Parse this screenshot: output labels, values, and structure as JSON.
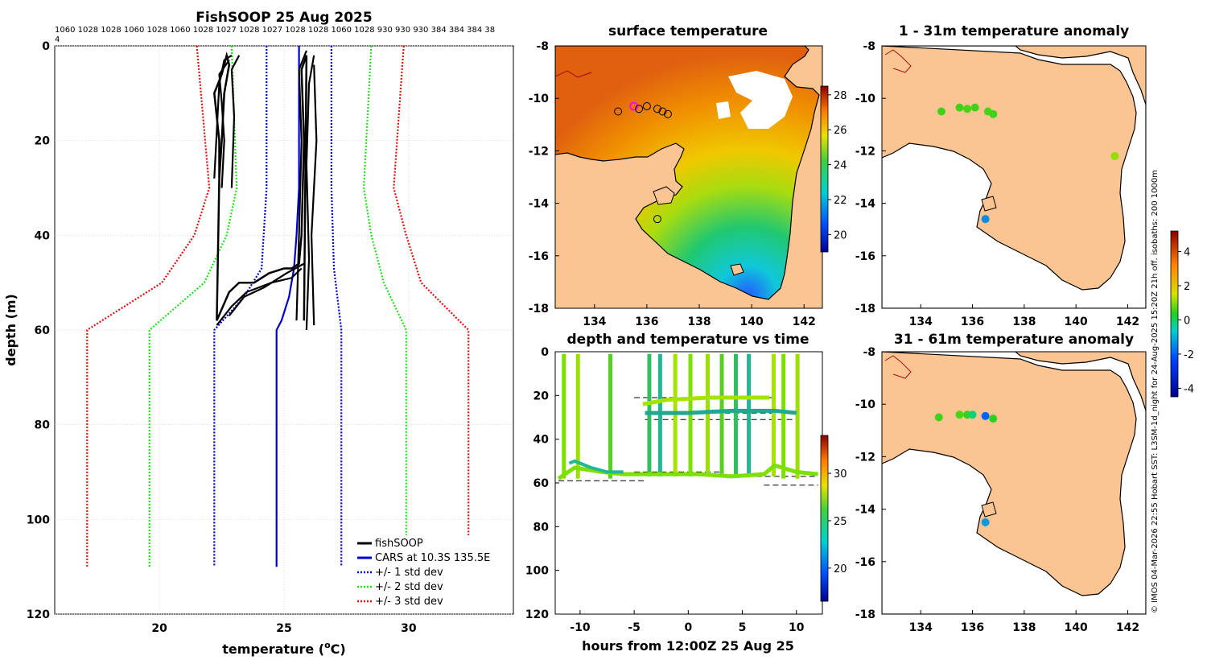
{
  "colors": {
    "fish": "#000000",
    "cars": "#0000cc",
    "std1": "#0000cc",
    "std2": "#22dd22",
    "std3": "#dd1111",
    "land": "#fbc593",
    "coast": "#000000"
  },
  "profile": {
    "title": "FishSOOP 25 Aug 2025",
    "top_numbers": "1060 1028 1028 1060 1028 1060 1028 1027 1028 1027 1028 1028 1060 1028 930 930 930 384 384 384 38",
    "top_numbers_wrap": "4",
    "xlabel": "temperature (oC)",
    "xlabel_main": "temperature (",
    "xlabel_sup": "o",
    "xlabel_tail": "C)",
    "ylabel": "depth (m)",
    "legend": [
      "fishSOOP",
      "CARS at 10.3S 135.5E",
      "+/- 1 std dev",
      "+/- 2 std dev",
      "+/- 3 std dev"
    ]
  },
  "sst": {
    "title": "surface temperature",
    "cbar_ticks": [
      "28",
      "26",
      "24",
      "22",
      "20"
    ]
  },
  "timeseries": {
    "title": "depth and temperature vs time",
    "xlabel": "hours from 12:00Z 25 Aug 25",
    "cbar_ticks": [
      "30",
      "25",
      "20"
    ]
  },
  "anom1": {
    "title": "1 - 31m temperature anomaly"
  },
  "anom2": {
    "title": "31 - 61m temperature anomaly"
  },
  "anom_cbar_ticks": [
    "4",
    "2",
    "0",
    "-2",
    "-4"
  ],
  "footer": "© IMOS 04-Mar-2026 22:55 Hobart SST: L3SM-1d_night for 24-Aug-2025 15:20Z 21h off. isobaths: 200  1000m",
  "chart_data": [
    {
      "type": "line",
      "name": "temperature profile",
      "title": "FishSOOP 25 Aug 2025",
      "xlabel": "temperature (oC)",
      "ylabel": "depth (m)",
      "xlim": [
        15.8,
        34.2
      ],
      "ylim": [
        120,
        0
      ],
      "xticks": [
        20,
        25,
        30
      ],
      "yticks": [
        0,
        20,
        40,
        60,
        80,
        100,
        120
      ],
      "series": [
        {
          "name": "CARS at 10.3S 135.5E",
          "x": [
            25.6,
            25.6,
            25.5,
            25.4,
            25.2,
            24.9,
            24.7,
            24.7
          ],
          "y": [
            0,
            30,
            40,
            47,
            53,
            58,
            60,
            110
          ]
        },
        {
          "name": "+/- 1 std dev low",
          "x": [
            24.3,
            24.3,
            24.1,
            23.4,
            22.2,
            22.2
          ],
          "y": [
            0,
            30,
            47,
            53,
            60,
            110
          ]
        },
        {
          "name": "+/- 1 std dev high",
          "x": [
            26.9,
            26.9,
            27.0,
            27.3,
            27.3
          ],
          "y": [
            0,
            30,
            47,
            60,
            110
          ]
        },
        {
          "name": "+/- 2 std dev low",
          "x": [
            22.9,
            23.1,
            22.7,
            21.8,
            19.6,
            19.6
          ],
          "y": [
            0,
            30,
            40,
            50,
            60,
            110
          ]
        },
        {
          "name": "+/- 2 std dev high",
          "x": [
            28.5,
            28.2,
            28.5,
            29.0,
            29.9,
            29.9
          ],
          "y": [
            0,
            30,
            40,
            50,
            60,
            110
          ]
        },
        {
          "name": "+/- 3 std dev low",
          "x": [
            21.5,
            22.0,
            21.4,
            20.1,
            17.1,
            17.1
          ],
          "y": [
            0,
            30,
            40,
            50,
            60,
            110
          ]
        },
        {
          "name": "+/- 3 std dev high",
          "x": [
            29.8,
            29.4,
            29.9,
            30.5,
            32.4,
            32.4
          ],
          "y": [
            0,
            30,
            40,
            50,
            60,
            110
          ]
        },
        {
          "name": "fishSOOP",
          "x": [
            22.4,
            22.5,
            22.6,
            22.8,
            22.7,
            22.5,
            22.2,
            22.4,
            22.4,
            22.3,
            22.8,
            23.2,
            23.8,
            24.4,
            25.0,
            25.3,
            25.6,
            25.7,
            25.8,
            25.7,
            25.9,
            25.8
          ],
          "y": [
            28,
            20,
            10,
            4,
            2,
            6,
            10,
            20,
            28,
            58,
            52,
            50,
            50,
            48,
            47,
            47,
            46,
            40,
            20,
            5,
            2,
            58
          ]
        }
      ],
      "legend_position": "bottom-right"
    },
    {
      "type": "heatmap",
      "name": "surface temperature",
      "title": "surface temperature",
      "xlim": [
        132.5,
        142.7
      ],
      "ylim": [
        -18,
        -8
      ],
      "xticks": [
        134,
        136,
        138,
        140,
        142
      ],
      "yticks": [
        -8,
        -10,
        -12,
        -14,
        -16,
        -18
      ],
      "colorbar": {
        "min": 19,
        "max": 28.5,
        "ticks": [
          28,
          26,
          24,
          22,
          20
        ]
      },
      "markers": [
        [
          134.9,
          -10.5
        ],
        [
          135.5,
          -10.3
        ],
        [
          135.7,
          -10.4
        ],
        [
          136.0,
          -10.3
        ],
        [
          136.4,
          -10.4
        ],
        [
          136.6,
          -10.5
        ],
        [
          136.8,
          -10.6
        ],
        [
          136.4,
          -14.6
        ]
      ]
    },
    {
      "type": "scatter",
      "name": "depth and temperature vs time",
      "title": "depth and temperature vs time",
      "xlabel": "hours from 12:00Z 25 Aug 25",
      "xlim": [
        -12.3,
        12.4
      ],
      "ylim": [
        120,
        0
      ],
      "xticks": [
        -10,
        -5,
        0,
        5,
        10
      ],
      "yticks": [
        0,
        20,
        40,
        60,
        80,
        100,
        120
      ],
      "colorbar": {
        "min": 16.5,
        "max": 34,
        "ticks": [
          30,
          25,
          20
        ]
      },
      "bottom_depth": [
        [
          -12,
          57
        ],
        [
          -7,
          58
        ],
        [
          -5,
          56
        ],
        [
          0,
          57
        ],
        [
          5,
          57
        ],
        [
          7.5,
          56
        ],
        [
          12,
          57
        ]
      ]
    },
    {
      "type": "scatter",
      "name": "1 - 31m temperature anomaly",
      "title": "1 - 31m temperature anomaly",
      "xlim": [
        132.5,
        142.7
      ],
      "ylim": [
        -18,
        -8
      ],
      "xticks": [
        134,
        136,
        138,
        140,
        142
      ],
      "yticks": [
        -8,
        -10,
        -12,
        -14,
        -16,
        -18
      ],
      "points": [
        {
          "lon": 134.8,
          "lat": -10.5,
          "anom": 0.3
        },
        {
          "lon": 135.5,
          "lat": -10.35,
          "anom": 0.3
        },
        {
          "lon": 135.8,
          "lat": -10.4,
          "anom": 0.4
        },
        {
          "lon": 136.1,
          "lat": -10.35,
          "anom": 0.3
        },
        {
          "lon": 136.6,
          "lat": -10.5,
          "anom": 0.4
        },
        {
          "lon": 136.8,
          "lat": -10.6,
          "anom": 0.3
        },
        {
          "lon": 141.5,
          "lat": -12.2,
          "anom": 1.2
        },
        {
          "lon": 136.5,
          "lat": -14.6,
          "anom": -1.5
        }
      ]
    },
    {
      "type": "scatter",
      "name": "31 - 61m temperature anomaly",
      "title": "31 - 61m temperature anomaly",
      "xlim": [
        132.5,
        142.7
      ],
      "ylim": [
        -18,
        -8
      ],
      "xticks": [
        134,
        136,
        138,
        140,
        142
      ],
      "yticks": [
        -8,
        -10,
        -12,
        -14,
        -16,
        -18
      ],
      "points": [
        {
          "lon": 134.7,
          "lat": -10.5,
          "anom": 0.3
        },
        {
          "lon": 135.5,
          "lat": -10.4,
          "anom": 0.4
        },
        {
          "lon": 135.8,
          "lat": -10.4,
          "anom": 0.2
        },
        {
          "lon": 136.0,
          "lat": -10.4,
          "anom": -0.5
        },
        {
          "lon": 136.5,
          "lat": -10.45,
          "anom": -1.8
        },
        {
          "lon": 136.8,
          "lat": -10.55,
          "anom": 0.1
        },
        {
          "lon": 136.5,
          "lat": -14.5,
          "anom": -1.4
        }
      ]
    }
  ]
}
